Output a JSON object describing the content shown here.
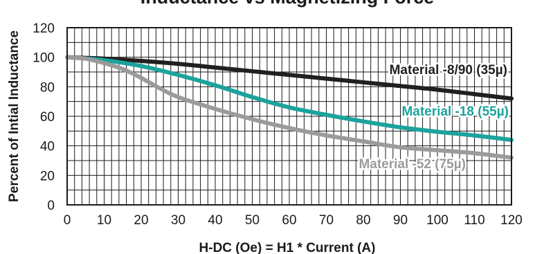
{
  "chart_data": {
    "type": "line",
    "title": "Inductance vs Magnetizing Force",
    "xlabel": "H-DC (Oe) = H1 * Current (A)",
    "ylabel": "Percent of Intial Inductance",
    "xlim": [
      0,
      120
    ],
    "ylim": [
      0,
      120
    ],
    "x_ticks": [
      0,
      10,
      20,
      30,
      40,
      50,
      60,
      70,
      80,
      90,
      100,
      110,
      120
    ],
    "y_ticks": [
      0,
      20,
      40,
      60,
      80,
      100,
      120
    ],
    "x_minor_step": 2,
    "y_minor_step": 10,
    "grid": true,
    "legend": "none",
    "series": [
      {
        "name": "Material -8/90 (35µ)",
        "color": "#231f20",
        "x": [
          0,
          10,
          20,
          30,
          40,
          50,
          60,
          70,
          80,
          90,
          100,
          110,
          120
        ],
        "y": [
          100,
          99,
          97.5,
          95.5,
          93,
          90.5,
          88,
          85.5,
          83,
          80.5,
          78,
          75,
          72
        ]
      },
      {
        "name": "Material -18 (55µ)",
        "color": "#1ba39c",
        "x": [
          0,
          10,
          20,
          30,
          40,
          50,
          60,
          70,
          80,
          90,
          100,
          110,
          120
        ],
        "y": [
          100,
          98,
          94,
          88,
          81,
          73,
          66,
          61,
          56.5,
          52.5,
          49.5,
          47,
          44
        ]
      },
      {
        "name": "Material -52 (75µ)",
        "color": "#9b9b9b",
        "x": [
          0,
          5,
          10,
          15,
          20,
          25,
          30,
          40,
          50,
          60,
          70,
          80,
          90,
          100,
          110,
          120
        ],
        "y": [
          100,
          99,
          96,
          92,
          86,
          79,
          73,
          65,
          58,
          52,
          47,
          43,
          39,
          37,
          35,
          32
        ]
      }
    ]
  }
}
